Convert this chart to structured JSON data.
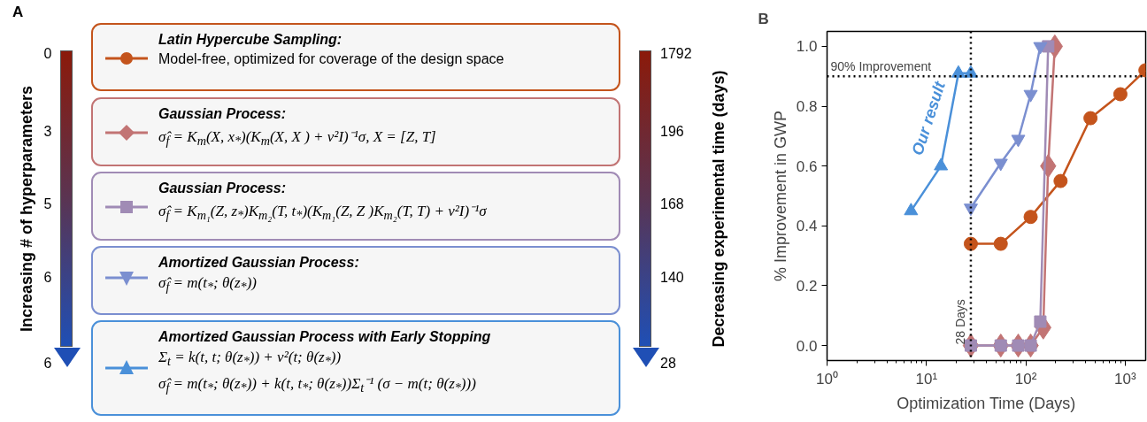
{
  "chart_data": [
    {
      "type": "other",
      "title": "A",
      "annotations": [
        "Increasing # of hyperparameters",
        "0",
        "3",
        "5",
        "6",
        "6",
        "Latin Hypercube Sampling:",
        "Model-free, optimized for coverage of the design space",
        "Gaussian Process:",
        "σ̂$_{f}$ = K$_{m}$(X, x$_{*}$)(K$_{m}$(X, X ) + v²I)⁻¹σ,   X = [Z, T]",
        "Gaussian Process:",
        "σ̂$_{f}$ = K$_{m₁}$(Z, z$_{*}$)K$_{m₂}$(T, t$_{*}$)(K$_{m₁}$(Z, Z )K$_{m₂}$(T, T) + v²I)⁻¹σ",
        "Amortized Gaussian Process:",
        "σ̂$_{f}$ = m(t$_{*}$; θ(z$_{*}$))",
        "Amortized Gaussian Process with Early Stopping",
        "Σ$_{t}$ = k(t, t; θ(z$_{*}$)) + v²(t; θ(z$_{*}$))",
        "σ̂$_{f}$ = m(t$_{*}$; θ(z$_{*}$)) + k(t, t$_{*}$; θ(z$_{*}$))Σ$_{t}$⁻¹ (σ − m(t; θ(z$_{*}$)))",
        "1792",
        "196",
        "168",
        "140",
        "28",
        "Decreasing experimental time (days)"
      ]
    },
    {
      "type": "line",
      "title": "B",
      "xlabel": "Optimization Time (Days)",
      "ylabel": "% Improvement in GWP",
      "log": "x",
      "grid": false,
      "xlim": [
        1,
        1610
      ],
      "ylim": [
        -0.05,
        1.05
      ],
      "xticks": [
        {
          "value": 1,
          "label": "10⁰"
        },
        {
          "value": 10,
          "label": "10¹"
        },
        {
          "value": 100,
          "label": "10²"
        },
        {
          "value": 1000,
          "label": "10³"
        }
      ],
      "yticks": [
        {
          "value": 0,
          "label": "0.0"
        },
        {
          "value": 0.2,
          "label": "0.2"
        },
        {
          "value": 0.4,
          "label": "0.4"
        },
        {
          "value": 0.6,
          "label": "0.6"
        },
        {
          "value": 0.8,
          "label": "0.8"
        },
        {
          "value": 1.0,
          "label": "1.0"
        }
      ],
      "ref_lines": [
        {
          "axis": "y",
          "value": 0.9,
          "label": "90% Improvement",
          "color": "#000000",
          "line_style": "dotted"
        },
        {
          "axis": "x",
          "value": 28,
          "label": "28 Days",
          "color": "#000000",
          "line_style": "dotted"
        }
      ],
      "series": [
        {
          "color": "#c4541c",
          "marker": "circle",
          "x": [
            28,
            56,
            112,
            224,
            448,
            896,
            1600
          ],
          "values": [
            0.34,
            0.34,
            0.43,
            0.55,
            0.76,
            0.84,
            0.92
          ]
        },
        {
          "color": "#c27474",
          "marker": "diamond",
          "x": [
            28,
            56,
            84,
            112,
            150,
            168,
            196
          ],
          "values": [
            0.0,
            0.0,
            0.0,
            0.0,
            0.06,
            0.6,
            1.0
          ]
        },
        {
          "color": "#a08bb5",
          "marker": "square",
          "x": [
            28,
            56,
            84,
            112,
            140,
            168
          ],
          "values": [
            0.0,
            0.0,
            0.0,
            0.0,
            0.08,
            1.0
          ]
        },
        {
          "color": "#7b8fd0",
          "marker": "triangle_down",
          "x": [
            28,
            56,
            84,
            112,
            140
          ],
          "values": [
            0.46,
            0.61,
            0.69,
            0.84,
            1.0
          ]
        },
        {
          "name": "Our result",
          "color": "#4a90d9",
          "marker": "triangle",
          "x": [
            7,
            14,
            21,
            28
          ],
          "values": [
            0.45,
            0.6,
            0.91,
            0.91
          ]
        }
      ]
    }
  ]
}
